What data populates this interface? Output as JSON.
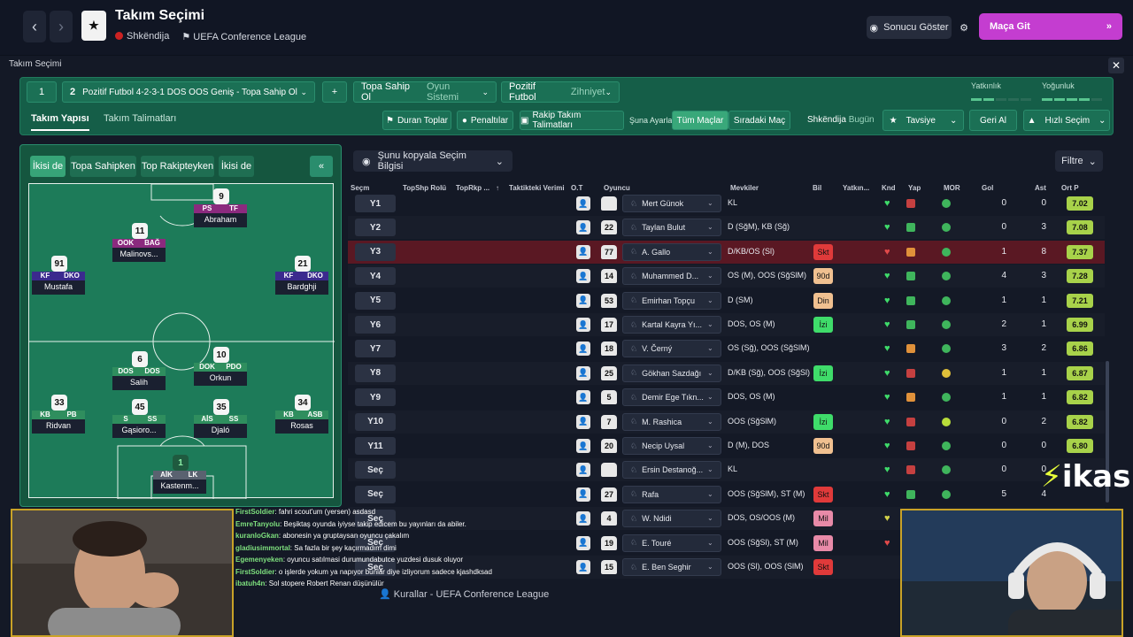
{
  "header": {
    "title": "Takım Seçimi",
    "club": "Shkëndija",
    "competition": "UEFA Conference League",
    "result_btn": "Sonucu Göster",
    "match_btn": "Maça Git"
  },
  "panel": {
    "title": "Takım Seçimi"
  },
  "tactic": {
    "slot1": "1",
    "slot2": "2",
    "name": "Pozitif Futbol 4-2-3-1 DOS OOS Geniş - Topa Sahip Ol",
    "add": "+",
    "system_value": "Topa Sahip Ol",
    "system_label": "Oyun Sistemi",
    "mentality_value": "Pozitif Futbol",
    "mentality_label": "Zihniyet",
    "familiarity": "Yatkınlık",
    "intensity": "Yoğunluk"
  },
  "subtabs": {
    "tab1": "Takım Yapısı",
    "tab2": "Takım Talimatları",
    "duran": "Duran Toplar",
    "penalti": "Penaltılar",
    "rakip": "Rakip Takım Talimatları",
    "suna": "Şuna Ayarla",
    "tum": "Tüm Maçlar",
    "siradaki": "Sıradaki Maç",
    "club": "Shkëndija",
    "today": "Bugün",
    "tavsiye": "Tavsiye",
    "geri": "Geri Al",
    "hizli": "Hızlı Seçim"
  },
  "pitch_tabs": [
    "İkisi de",
    "Topa Sahipken",
    "Top Rakipteyken",
    "İkisi de"
  ],
  "players": [
    {
      "num": "9",
      "p1": "PS",
      "p2": "TF",
      "name": "Abraham"
    },
    {
      "num": "11",
      "p1": "OOK",
      "p2": "BAĞ",
      "name": "Malinovs..."
    },
    {
      "num": "91",
      "p1": "KF",
      "p2": "DKO",
      "name": "Mustafa"
    },
    {
      "num": "21",
      "p1": "KF",
      "p2": "DKO",
      "name": "Bardghji"
    },
    {
      "num": "6",
      "p1": "DOS",
      "p2": "DOS",
      "name": "Salih"
    },
    {
      "num": "10",
      "p1": "DOK",
      "p2": "PDO",
      "name": "Orkun"
    },
    {
      "num": "33",
      "p1": "KB",
      "p2": "PB",
      "name": "Ridvan"
    },
    {
      "num": "45",
      "p1": "S",
      "p2": "SS",
      "name": "Gąsioro..."
    },
    {
      "num": "35",
      "p1": "AİS",
      "p2": "SS",
      "name": "Djaló"
    },
    {
      "num": "34",
      "p1": "KB",
      "p2": "ASB",
      "name": "Rosas"
    },
    {
      "num": "1",
      "p1": "AİK",
      "p2": "LK",
      "name": "Kastenm..."
    }
  ],
  "table": {
    "copy_btn": "Şunu kopyala Seçim Bilgisi",
    "filter": "Filtre",
    "headers": [
      "Seçm",
      "TopShp Rolü",
      "TopRkp ...",
      "Taktikteki Verimi",
      "O.T",
      "Oyuncu",
      "Mevkiler",
      "Bil",
      "Yatkın...",
      "Knd",
      "Yap",
      "MOR",
      "Gol",
      "Ast",
      "Ort P"
    ],
    "rows": [
      {
        "sel": "Y1",
        "jersey": "",
        "name": "Mert Günok",
        "mv": "KL",
        "bil": "",
        "gol": "0",
        "ast": "0",
        "ort": "7.02"
      },
      {
        "sel": "Y2",
        "jersey": "22",
        "name": "Taylan Bulut",
        "mv": "D (SğM), KB (Sğ)",
        "bil": "",
        "gol": "0",
        "ast": "3",
        "ort": "7.08"
      },
      {
        "sel": "Y3",
        "jersey": "77",
        "name": "A. Gallo",
        "mv": "D/KB/OS (Sl)",
        "bil": "Skt",
        "gol": "1",
        "ast": "8",
        "ort": "7.37"
      },
      {
        "sel": "Y4",
        "jersey": "14",
        "name": "Muhammed D...",
        "mv": "OS (M), OOS (SğSlM)",
        "bil": "90d",
        "gol": "4",
        "ast": "3",
        "ort": "7.28"
      },
      {
        "sel": "Y5",
        "jersey": "53",
        "name": "Emirhan Topçu",
        "mv": "D (SM)",
        "bil": "Din",
        "gol": "1",
        "ast": "1",
        "ort": "7.21"
      },
      {
        "sel": "Y6",
        "jersey": "17",
        "name": "Kartal Kayra Yı...",
        "mv": "DOS, OS (M)",
        "bil": "İzi",
        "gol": "2",
        "ast": "1",
        "ort": "6.99"
      },
      {
        "sel": "Y7",
        "jersey": "18",
        "name": "V. Černý",
        "mv": "OS (Sğ), OOS (SğSlM)",
        "bil": "",
        "gol": "3",
        "ast": "2",
        "ort": "6.86"
      },
      {
        "sel": "Y8",
        "jersey": "25",
        "name": "Gökhan Sazdağı",
        "mv": "D/KB (Sğ), OOS (SğSl)",
        "bil": "İzi",
        "gol": "1",
        "ast": "1",
        "ort": "6.87"
      },
      {
        "sel": "Y9",
        "jersey": "5",
        "name": "Demir Ege Tıkn...",
        "mv": "DOS, OS (M)",
        "bil": "",
        "gol": "1",
        "ast": "1",
        "ort": "6.82"
      },
      {
        "sel": "Y10",
        "jersey": "7",
        "name": "M. Rashica",
        "mv": "OOS (SğSlM)",
        "bil": "İzi",
        "gol": "0",
        "ast": "2",
        "ort": "6.82"
      },
      {
        "sel": "Y11",
        "jersey": "20",
        "name": "Necip Uysal",
        "mv": "D (M), DOS",
        "bil": "90d",
        "gol": "0",
        "ast": "0",
        "ort": "6.80"
      },
      {
        "sel": "Seç",
        "jersey": "",
        "name": "Ersin Destanoğ...",
        "mv": "KL",
        "bil": "",
        "gol": "0",
        "ast": "0",
        "ort": ""
      },
      {
        "sel": "Seç",
        "jersey": "27",
        "name": "Rafa",
        "mv": "OOS (SğSlM), ST (M)",
        "bil": "Skt",
        "gol": "5",
        "ast": "4",
        "ort": ""
      },
      {
        "sel": "Seç",
        "jersey": "4",
        "name": "W. Ndidi",
        "mv": "DOS, OS/OOS (M)",
        "bil": "Mil",
        "gol": "",
        "ast": "",
        "ort": ""
      },
      {
        "sel": "Seç",
        "jersey": "19",
        "name": "E. Touré",
        "mv": "OOS (SğSl), ST (M)",
        "bil": "Mil",
        "gol": "",
        "ast": "",
        "ort": ""
      },
      {
        "sel": "Seç",
        "jersey": "15",
        "name": "E. Ben Seghir",
        "mv": "OOS (Sl), OOS (SlM)",
        "bil": "Skt",
        "gol": "",
        "ast": "",
        "ort": ""
      }
    ]
  },
  "rules": "Kurallar - UEFA Conference League",
  "chat": [
    {
      "u": "FirstSoldier",
      "m": ": fahri scout'um (yersen) asdasd"
    },
    {
      "u": "EmreTanyolu",
      "m": ": Beşiktaş oyunda iyiyse takip edicem bu yayınları da abiler."
    },
    {
      "u": "kuranloGkan",
      "m": ": abonesin ya gruptaysan oyuncu çakalım"
    },
    {
      "u": "gladiusimmortal",
      "m": ": Sa fazla bir şey kaçırmadım dimi"
    },
    {
      "u": "Egemenyeken",
      "m": ": oyuncu satılmasi durumundabutce yuzdesi dusuk oluyor"
    },
    {
      "u": "FirstSoldier",
      "m": ": o işlerde yokum ya napıyor bunlar diye izliyorum sadece kjashdksad"
    },
    {
      "u": "ibatuh4n",
      "m": ": Sol stopere Robert Renan düşünülür"
    }
  ],
  "brand": {
    "a": "ikas"
  }
}
